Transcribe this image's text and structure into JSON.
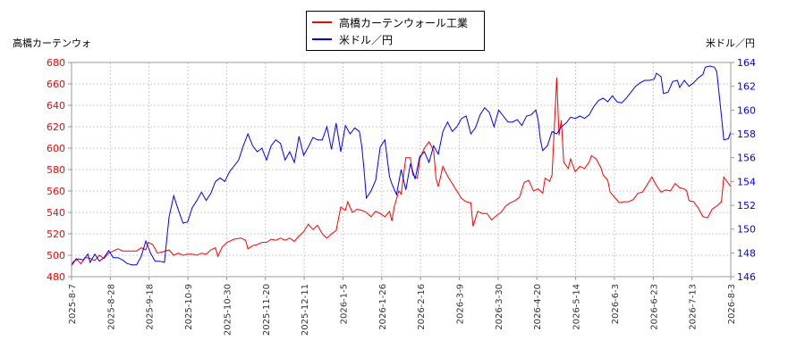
{
  "chart_data": {
    "type": "line",
    "legend": {
      "placement": "top-center",
      "entries": [
        "高橋カーテンウォール工業",
        "米ドル／円"
      ]
    },
    "left_axis": {
      "title": "高橋カーテンウォ",
      "color": "#ff0000",
      "ylim": [
        480,
        680
      ],
      "ticks": [
        "480",
        "500",
        "520",
        "540",
        "560",
        "580",
        "600",
        "620",
        "640",
        "660",
        "680"
      ]
    },
    "right_axis": {
      "title": "米ドル／円",
      "color": "#0000ff",
      "ylim": [
        146,
        164
      ],
      "ticks": [
        "146",
        "148",
        "150",
        "152",
        "154",
        "156",
        "158",
        "160",
        "162",
        "164"
      ]
    },
    "x_ticks": [
      "2025-8-7",
      "2025-8-28",
      "2025-9-18",
      "2025-10-9",
      "2025-10-30",
      "2025-11-20",
      "2025-12-11",
      "2026-1-5",
      "2026-1-26",
      "2026-2-16",
      "2026-3-9",
      "2026-3-30",
      "2026-4-20",
      "2026-5-14",
      "2026-6-3",
      "2026-6-23",
      "2026-7-13",
      "2026-8-3"
    ],
    "grid": true,
    "series": [
      {
        "name": "高橋カーテンウォール工業",
        "axis": "left",
        "color": "#ff0000",
        "points": [
          [
            0,
            490
          ],
          [
            2,
            497
          ],
          [
            4,
            492
          ],
          [
            6,
            498
          ],
          [
            8,
            497
          ],
          [
            10,
            495
          ],
          [
            12,
            500
          ],
          [
            14,
            497
          ],
          [
            16,
            502
          ],
          [
            18,
            504
          ],
          [
            20,
            506
          ],
          [
            22,
            504
          ],
          [
            24,
            504
          ],
          [
            26,
            504
          ],
          [
            28,
            504
          ],
          [
            30,
            507
          ],
          [
            32,
            505
          ],
          [
            33,
            512
          ],
          [
            35,
            510
          ],
          [
            37,
            502
          ],
          [
            39,
            503
          ],
          [
            42,
            505
          ],
          [
            44,
            500
          ],
          [
            46,
            502
          ],
          [
            48,
            500
          ],
          [
            50,
            501
          ],
          [
            52,
            501
          ],
          [
            54,
            500
          ],
          [
            56,
            502
          ],
          [
            58,
            501
          ],
          [
            60,
            505
          ],
          [
            62,
            507
          ],
          [
            63,
            499
          ],
          [
            65,
            508
          ],
          [
            67,
            512
          ],
          [
            70,
            515
          ],
          [
            73,
            516
          ],
          [
            75,
            514
          ],
          [
            76,
            506
          ],
          [
            78,
            509
          ],
          [
            80,
            510
          ],
          [
            82,
            512
          ],
          [
            84,
            512
          ],
          [
            86,
            515
          ],
          [
            88,
            514
          ],
          [
            90,
            516
          ],
          [
            92,
            514
          ],
          [
            94,
            516
          ],
          [
            96,
            513
          ],
          [
            98,
            518
          ],
          [
            100,
            522
          ],
          [
            102,
            529
          ],
          [
            104,
            524
          ],
          [
            106,
            528
          ],
          [
            108,
            520
          ],
          [
            110,
            516
          ],
          [
            112,
            520
          ],
          [
            114,
            523
          ],
          [
            116,
            545
          ],
          [
            118,
            542
          ],
          [
            119,
            550
          ],
          [
            121,
            540
          ],
          [
            123,
            543
          ],
          [
            125,
            542
          ],
          [
            127,
            540
          ],
          [
            129,
            536
          ],
          [
            131,
            541
          ],
          [
            133,
            539
          ],
          [
            135,
            536
          ],
          [
            137,
            541
          ],
          [
            138,
            532
          ],
          [
            139,
            545
          ],
          [
            141,
            560
          ],
          [
            142,
            557
          ],
          [
            144,
            591
          ],
          [
            146,
            591
          ],
          [
            147,
            575
          ],
          [
            149,
            572
          ],
          [
            150,
            590
          ],
          [
            152,
            600
          ],
          [
            154,
            606
          ],
          [
            156,
            598
          ],
          [
            157,
            572
          ],
          [
            158,
            564
          ],
          [
            160,
            583
          ],
          [
            162,
            574
          ],
          [
            164,
            567
          ],
          [
            166,
            560
          ],
          [
            168,
            553
          ],
          [
            170,
            550
          ],
          [
            172,
            549
          ],
          [
            173,
            527
          ],
          [
            175,
            541
          ],
          [
            177,
            539
          ],
          [
            179,
            539
          ],
          [
            181,
            533
          ],
          [
            183,
            537
          ],
          [
            185,
            540
          ],
          [
            187,
            546
          ],
          [
            189,
            549
          ],
          [
            191,
            551
          ],
          [
            193,
            554
          ],
          [
            195,
            568
          ],
          [
            197,
            570
          ],
          [
            199,
            560
          ],
          [
            201,
            562
          ],
          [
            203,
            558
          ],
          [
            204,
            572
          ],
          [
            206,
            569
          ],
          [
            207,
            575
          ],
          [
            209,
            666
          ],
          [
            210,
            612
          ],
          [
            211,
            626
          ],
          [
            212,
            587
          ],
          [
            214,
            581
          ],
          [
            215,
            590
          ],
          [
            217,
            578
          ],
          [
            219,
            583
          ],
          [
            221,
            581
          ],
          [
            223,
            587
          ],
          [
            224,
            593
          ],
          [
            226,
            590
          ],
          [
            228,
            582
          ],
          [
            229,
            575
          ],
          [
            231,
            570
          ],
          [
            232,
            559
          ],
          [
            234,
            554
          ],
          [
            236,
            549
          ],
          [
            238,
            550
          ],
          [
            240,
            550
          ],
          [
            242,
            552
          ],
          [
            244,
            558
          ],
          [
            246,
            559
          ],
          [
            248,
            566
          ],
          [
            250,
            573
          ],
          [
            252,
            565
          ],
          [
            254,
            559
          ],
          [
            256,
            561
          ],
          [
            258,
            560
          ],
          [
            260,
            567
          ],
          [
            262,
            563
          ],
          [
            264,
            562
          ],
          [
            265,
            560
          ],
          [
            266,
            551
          ],
          [
            268,
            550
          ],
          [
            270,
            544
          ],
          [
            272,
            536
          ],
          [
            274,
            535
          ],
          [
            276,
            543
          ],
          [
            278,
            546
          ],
          [
            280,
            550
          ],
          [
            281,
            573
          ],
          [
            282,
            570
          ],
          [
            284,
            564
          ]
        ]
      },
      {
        "name": "米ドル／円",
        "axis": "right",
        "color": "#0000ff",
        "points": [
          [
            0,
            147.0
          ],
          [
            1,
            147.3
          ],
          [
            3,
            147.5
          ],
          [
            5,
            147.4
          ],
          [
            7,
            147.9
          ],
          [
            8,
            147.2
          ],
          [
            10,
            147.9
          ],
          [
            12,
            147.3
          ],
          [
            14,
            147.6
          ],
          [
            16,
            148.2
          ],
          [
            18,
            147.6
          ],
          [
            20,
            147.6
          ],
          [
            22,
            147.4
          ],
          [
            24,
            147.1
          ],
          [
            26,
            147.0
          ],
          [
            28,
            147.0
          ],
          [
            30,
            147.7
          ],
          [
            32,
            149.0
          ],
          [
            34,
            148.0
          ],
          [
            36,
            147.3
          ],
          [
            38,
            147.3
          ],
          [
            40,
            147.2
          ],
          [
            42,
            151.0
          ],
          [
            44,
            152.8
          ],
          [
            46,
            151.6
          ],
          [
            48,
            150.5
          ],
          [
            50,
            150.6
          ],
          [
            52,
            151.8
          ],
          [
            54,
            152.4
          ],
          [
            56,
            153.1
          ],
          [
            58,
            152.4
          ],
          [
            60,
            153.0
          ],
          [
            62,
            154.0
          ],
          [
            64,
            154.3
          ],
          [
            66,
            154.0
          ],
          [
            68,
            154.8
          ],
          [
            70,
            155.3
          ],
          [
            72,
            155.8
          ],
          [
            74,
            157.0
          ],
          [
            76,
            158.0
          ],
          [
            78,
            157.0
          ],
          [
            80,
            156.5
          ],
          [
            82,
            156.8
          ],
          [
            84,
            155.8
          ],
          [
            86,
            157.0
          ],
          [
            88,
            157.5
          ],
          [
            90,
            157.2
          ],
          [
            92,
            155.8
          ],
          [
            94,
            156.5
          ],
          [
            96,
            155.6
          ],
          [
            98,
            157.8
          ],
          [
            100,
            156.2
          ],
          [
            102,
            156.9
          ],
          [
            104,
            157.7
          ],
          [
            106,
            157.5
          ],
          [
            108,
            157.5
          ],
          [
            110,
            158.6
          ],
          [
            112,
            156.7
          ],
          [
            114,
            158.9
          ],
          [
            116,
            156.5
          ],
          [
            118,
            158.7
          ],
          [
            120,
            158.0
          ],
          [
            122,
            158.5
          ],
          [
            124,
            158.2
          ],
          [
            125,
            157.0
          ],
          [
            126,
            155.0
          ],
          [
            127,
            152.6
          ],
          [
            129,
            153.2
          ],
          [
            131,
            154.1
          ],
          [
            133,
            156.9
          ],
          [
            135,
            157.5
          ],
          [
            137,
            154.4
          ],
          [
            138,
            153.8
          ],
          [
            140,
            152.9
          ],
          [
            142,
            155.0
          ],
          [
            144,
            153.3
          ],
          [
            146,
            155.5
          ],
          [
            148,
            154.2
          ],
          [
            150,
            156.1
          ],
          [
            152,
            156.5
          ],
          [
            154,
            155.6
          ],
          [
            156,
            157.0
          ],
          [
            158,
            156.3
          ],
          [
            160,
            158.2
          ],
          [
            162,
            159.0
          ],
          [
            164,
            158.2
          ],
          [
            166,
            158.6
          ],
          [
            168,
            159.3
          ],
          [
            170,
            159.5
          ],
          [
            172,
            158.0
          ],
          [
            174,
            158.5
          ],
          [
            176,
            159.6
          ],
          [
            178,
            160.2
          ],
          [
            180,
            159.8
          ],
          [
            182,
            158.6
          ],
          [
            184,
            160.0
          ],
          [
            186,
            159.5
          ],
          [
            188,
            159.0
          ],
          [
            190,
            159.0
          ],
          [
            192,
            159.2
          ],
          [
            194,
            158.7
          ],
          [
            196,
            159.5
          ],
          [
            198,
            159.6
          ],
          [
            200,
            160.0
          ],
          [
            201,
            159.2
          ],
          [
            202,
            157.5
          ],
          [
            203,
            156.6
          ],
          [
            205,
            157.0
          ],
          [
            207,
            158.2
          ],
          [
            209,
            158.0
          ],
          [
            211,
            158.6
          ],
          [
            213,
            158.9
          ],
          [
            215,
            159.4
          ],
          [
            217,
            159.3
          ],
          [
            219,
            159.5
          ],
          [
            221,
            159.3
          ],
          [
            223,
            159.6
          ],
          [
            225,
            160.3
          ],
          [
            227,
            160.8
          ],
          [
            229,
            161.0
          ],
          [
            231,
            160.7
          ],
          [
            233,
            161.2
          ],
          [
            235,
            160.7
          ],
          [
            237,
            160.6
          ],
          [
            239,
            161.0
          ],
          [
            241,
            161.5
          ],
          [
            243,
            162.0
          ],
          [
            245,
            162.3
          ],
          [
            247,
            162.5
          ],
          [
            249,
            162.5
          ],
          [
            251,
            162.6
          ],
          [
            252,
            163.1
          ],
          [
            254,
            162.8
          ],
          [
            255,
            161.4
          ],
          [
            257,
            161.5
          ],
          [
            259,
            162.4
          ],
          [
            261,
            162.5
          ],
          [
            262,
            161.9
          ],
          [
            264,
            162.5
          ],
          [
            266,
            162.0
          ],
          [
            268,
            162.3
          ],
          [
            270,
            162.7
          ],
          [
            272,
            163.0
          ],
          [
            273,
            163.6
          ],
          [
            275,
            163.7
          ],
          [
            277,
            163.6
          ],
          [
            278,
            163.2
          ],
          [
            280,
            159.5
          ],
          [
            281,
            157.5
          ],
          [
            283,
            157.6
          ],
          [
            284,
            158.2
          ]
        ]
      }
    ]
  }
}
